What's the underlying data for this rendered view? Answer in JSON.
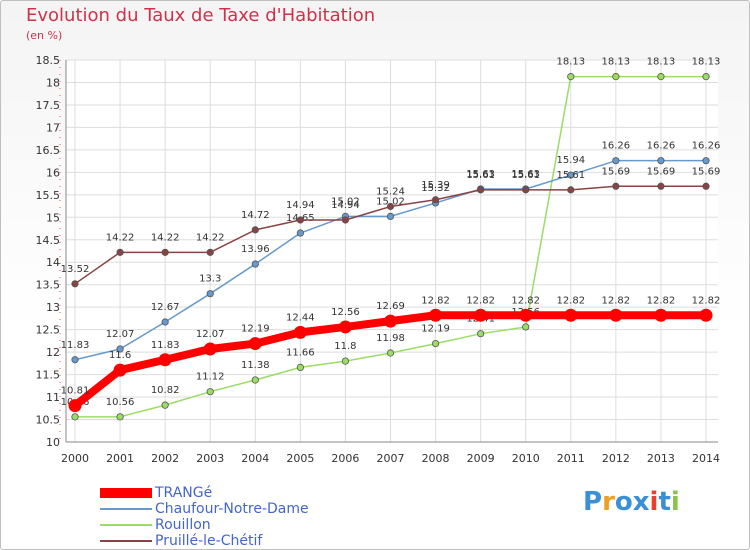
{
  "chart_data": {
    "type": "line",
    "title": "Evolution du Taux de Taxe d'Habitation",
    "ylabel": "(en %)",
    "xlabel": "",
    "ylim": [
      10,
      18.5
    ],
    "ytick_step": 0.5,
    "ytick_labels": [
      "10",
      "10.5",
      "11",
      "11.5",
      "12",
      "12.5",
      "13",
      "13.5",
      "14",
      "14.5",
      "15",
      "15.5",
      "16",
      "16.5",
      "17",
      "17.5",
      "18",
      "18.5"
    ],
    "grid": true,
    "legend": "bottom-left",
    "x": [
      "2000",
      "2001",
      "2002",
      "2003",
      "2004",
      "2005",
      "2006",
      "2007",
      "2008",
      "2009",
      "2010",
      "2011",
      "2012",
      "2013",
      "2014"
    ],
    "series": [
      {
        "name": "Rouillon",
        "color": "#99dd66",
        "values": [
          10.56,
          10.56,
          10.82,
          11.12,
          11.38,
          11.66,
          11.8,
          11.98,
          12.19,
          12.41,
          12.56,
          18.13,
          18.13,
          18.13,
          18.13
        ],
        "labels": [
          "10.56",
          "10.56",
          "10.82",
          "11.12",
          "11.38",
          "11.66",
          "11.8",
          "11.98",
          "12.19",
          "12.41",
          "12.56",
          "18.13",
          "18.13",
          "18.13",
          "18.13"
        ]
      },
      {
        "name": "Chaufour-Notre-Dame",
        "color": "#6699cc",
        "values": [
          11.83,
          12.07,
          12.67,
          13.3,
          13.96,
          14.65,
          15.02,
          15.02,
          15.32,
          15.63,
          15.63,
          15.94,
          16.26,
          16.26,
          16.26
        ],
        "labels": [
          "11.83",
          "12.07",
          "12.67",
          "13.3",
          "13.96",
          "14.65",
          "15.02",
          "15.02",
          "15.32",
          "15.63",
          "15.63",
          "15.94",
          "16.26",
          "16.26",
          "16.26"
        ]
      },
      {
        "name": "Pruillé-le-Chétif",
        "color": "#884444",
        "values": [
          13.52,
          14.22,
          14.22,
          14.22,
          14.72,
          14.94,
          14.94,
          15.24,
          15.39,
          15.61,
          15.61,
          15.61,
          15.69,
          15.69,
          15.69
        ],
        "labels": [
          "13.52",
          "14.22",
          "14.22",
          "14.22",
          "14.72",
          "14.94",
          "14.94",
          "15.24",
          "15.39",
          "15.61",
          "15.61",
          "15.61",
          "15.69",
          "15.69",
          "15.69"
        ]
      },
      {
        "name": "TRANGé",
        "color": "#ff0000",
        "values": [
          10.81,
          11.6,
          11.83,
          12.07,
          12.19,
          12.44,
          12.56,
          12.69,
          12.82,
          12.82,
          12.82,
          12.82,
          12.82,
          12.82,
          12.82
        ],
        "labels": [
          "10.81",
          "11.6",
          "11.83",
          "12.07",
          "12.19",
          "12.44",
          "12.56",
          "12.69",
          "12.82",
          "12.82",
          "12.82",
          "12.82",
          "12.82",
          "12.82",
          "12.82"
        ]
      }
    ]
  },
  "legend_items": [
    {
      "name": "TRANGé",
      "color": "#ff0000"
    },
    {
      "name": "Chaufour-Notre-Dame",
      "color": "#6699cc"
    },
    {
      "name": "Rouillon",
      "color": "#99dd66"
    },
    {
      "name": "Pruillé-le-Chétif",
      "color": "#884444"
    }
  ],
  "logo": {
    "letters": [
      "P",
      "r",
      "o",
      "x",
      "i",
      "t",
      "i"
    ],
    "colors": [
      "#3a8fd6",
      "#f0a020",
      "#3a8fd6",
      "#3a8fd6",
      "#e84030",
      "#3a8fd6",
      "#8bc34a"
    ]
  }
}
